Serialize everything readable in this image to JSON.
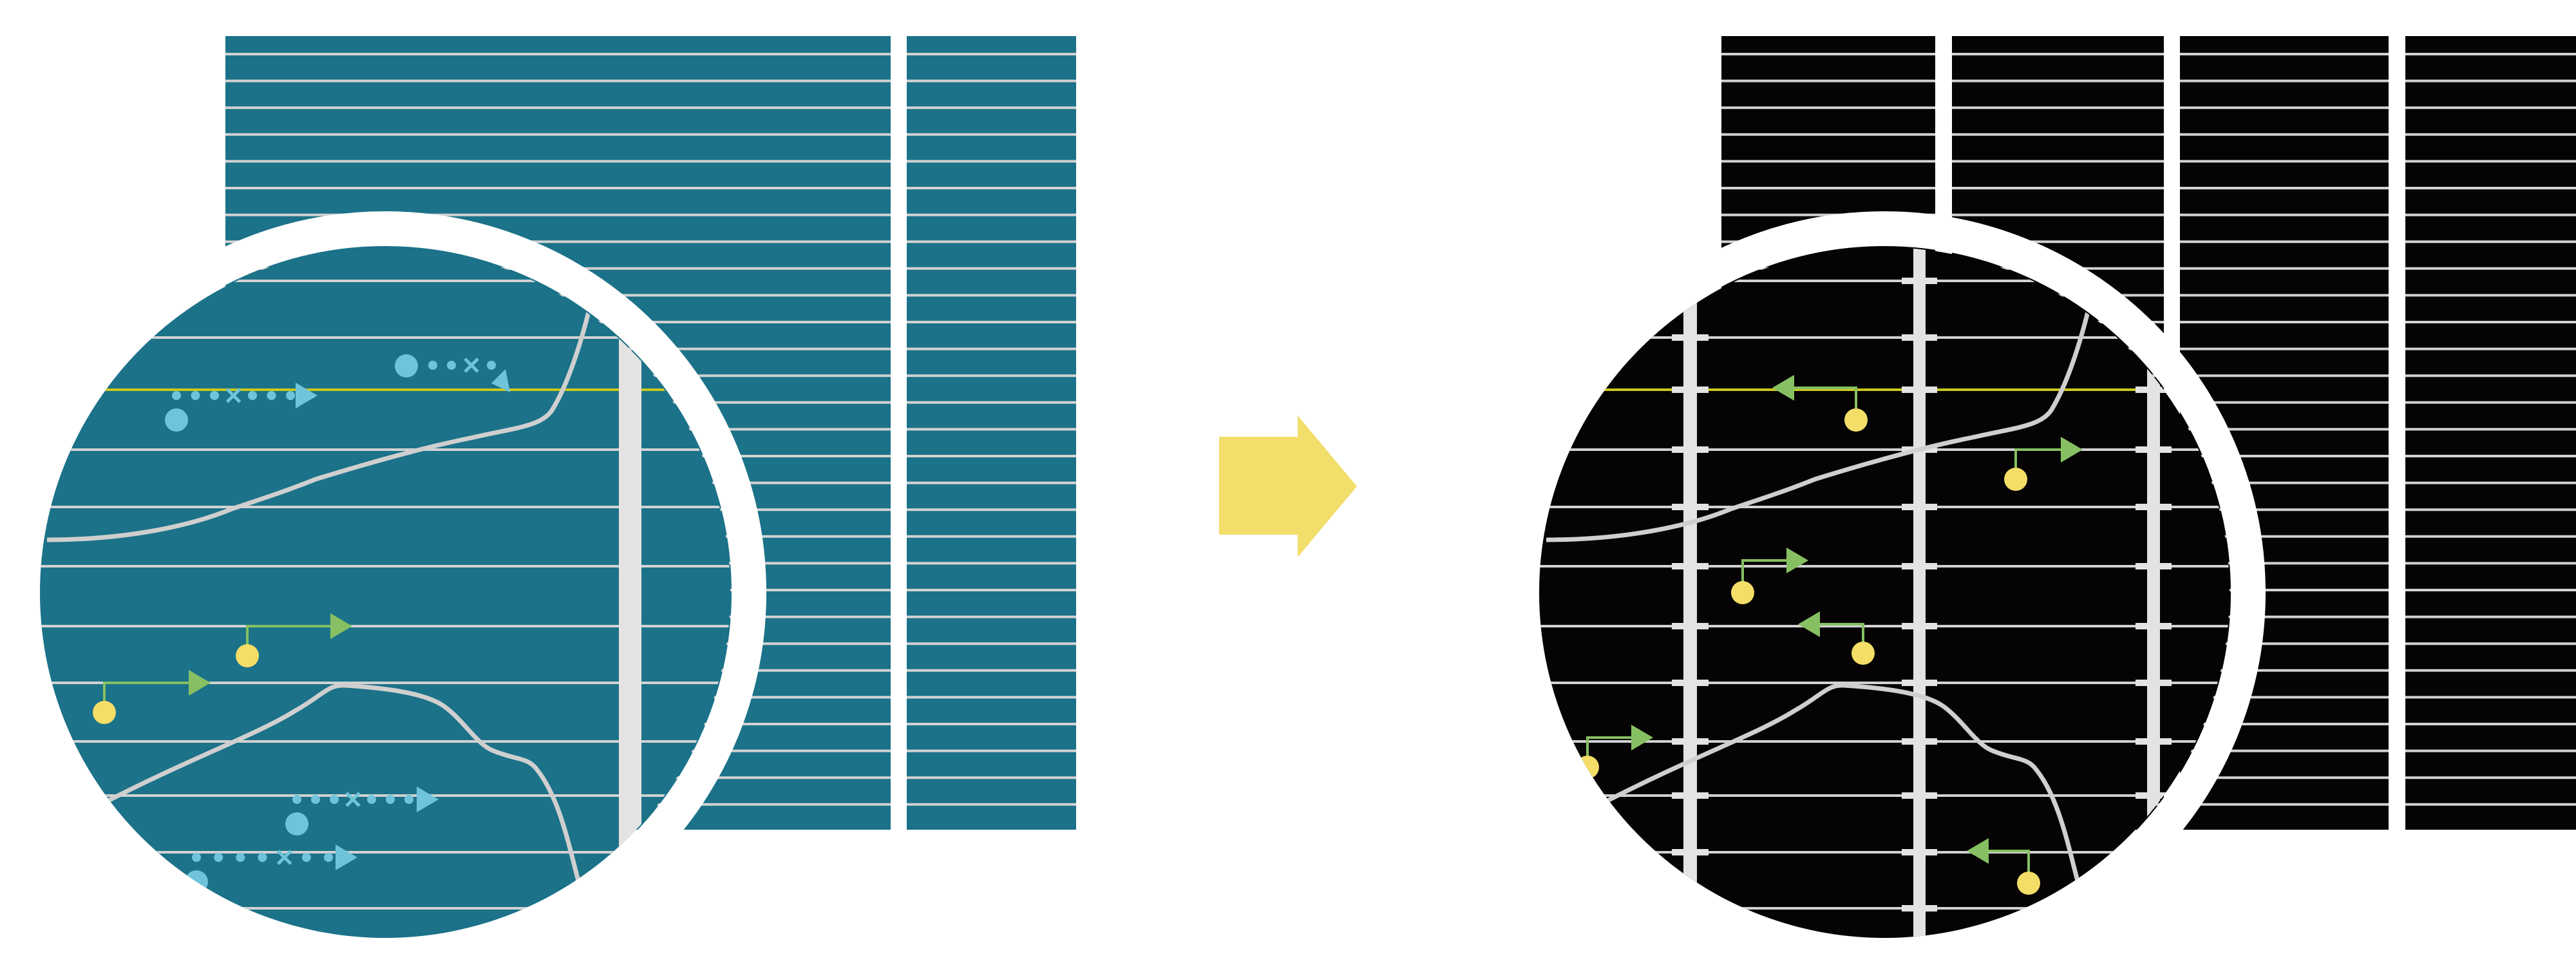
{
  "colors": {
    "before_background": "#1b7289",
    "after_background": "#050303",
    "grid_line": "#d2d2d2",
    "highlight_line": "#c8c81e",
    "divider_bar": "#e4e3e1",
    "curve": "#cfcfcf",
    "blue_marker": "#6fc4da",
    "green_arrow": "#86c062",
    "yellow_dot": "#f4de68",
    "transition_arrow": "#f2de6b",
    "ring": "#ffffff"
  },
  "icons": {
    "transition": "right-arrow-icon",
    "blue_marker": "dotted-arrow-icon",
    "green_marker": "elbow-arrow-icon"
  }
}
